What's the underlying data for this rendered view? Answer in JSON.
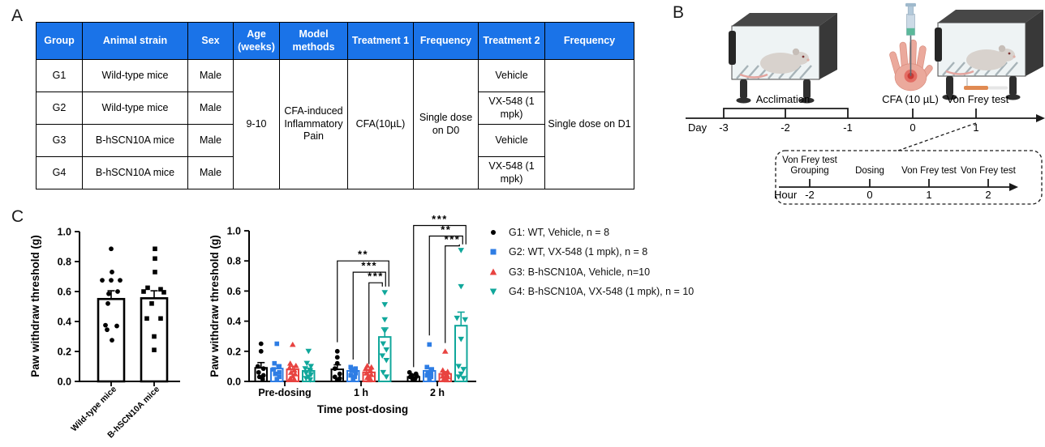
{
  "panel_a": {
    "label": "A",
    "table": {
      "header_bg": "#1a73e8",
      "headers": [
        "Group",
        "Animal strain",
        "Sex",
        "Age (weeks)",
        "Model methods",
        "Treatment 1",
        "Frequency",
        "Treatment 2",
        "Frequency"
      ],
      "rows": [
        {
          "group": "G1",
          "strain": "Wild-type mice",
          "sex": "Male",
          "treatment2": "Vehicle"
        },
        {
          "group": "G2",
          "strain": "Wild-type mice",
          "sex": "Male",
          "treatment2": "VX-548 (1 mpk)"
        },
        {
          "group": "G3",
          "strain": "B-hSCN10A mice",
          "sex": "Male",
          "treatment2": "Vehicle"
        },
        {
          "group": "G4",
          "strain": "B-hSCN10A mice",
          "sex": "Male",
          "treatment2": "VX-548 (1 mpk)"
        }
      ],
      "merged": {
        "age": "9-10",
        "model": "CFA-induced Inflammatory Pain",
        "treatment1": "CFA(10µL)",
        "frequency1": "Single dose on D0",
        "frequency2": "Single dose on D1"
      }
    }
  },
  "panel_b": {
    "label": "B",
    "illustration_labels": {
      "acclimation": "Acclimation",
      "cfa": "CFA (10 µL)",
      "von_frey": "Von Frey test"
    },
    "day_timeline": {
      "axis_label": "Day",
      "ticks": [
        "-3",
        "-2",
        "-1",
        "0",
        "1"
      ]
    },
    "hour_timeline": {
      "axis_label": "Hour",
      "ticks": [
        "-2",
        "0",
        "1",
        "2"
      ],
      "event_line1": "Von Frey test",
      "event_grouping": "Grouping",
      "event_dosing": "Dosing",
      "event_vf1": "Von Frey test",
      "event_vf2": "Von Frey test"
    }
  },
  "panel_c": {
    "label": "C",
    "legend": {
      "items": [
        {
          "label": "G1: WT, Vehicle, n = 8",
          "color": "#000000",
          "marker": "circle"
        },
        {
          "label": "G2: WT, VX-548 (1 mpk), n = 8",
          "color": "#2e7de4",
          "marker": "square"
        },
        {
          "label": "G3: B-hSCN10A, Vehicle, n=10",
          "color": "#e84340",
          "marker": "triangle-up"
        },
        {
          "label": "G4: B-hSCN10A, VX-548 (1 mpk), n = 10",
          "color": "#10a79b",
          "marker": "triangle-down"
        }
      ]
    }
  },
  "chart_data": [
    {
      "type": "bar",
      "title": "",
      "ylabel": "Paw withdraw threshold (g)",
      "xlabel": "",
      "ylim": [
        0,
        1
      ],
      "ytick_labels": [
        "0.0",
        "0.2",
        "0.4",
        "0.6",
        "0.8",
        "1.0"
      ],
      "grid": false,
      "categories": [
        "Wild-type mice",
        "B-hSCN10A mice"
      ],
      "values": [
        0.55,
        0.555
      ],
      "errors": [
        0.055,
        0.05
      ],
      "colors": [
        "#000000",
        "#000000"
      ],
      "markers": [
        "circle",
        "square"
      ],
      "points": [
        [
          [
            0.885,
            0
          ],
          [
            0.73,
            1
          ],
          [
            0.675,
            -11
          ],
          [
            0.675,
            0
          ],
          [
            0.675,
            11
          ],
          [
            0.6,
            8
          ],
          [
            0.585,
            -3
          ],
          [
            0.52,
            -4
          ],
          [
            0.375,
            -7
          ],
          [
            0.37,
            7
          ],
          [
            0.345,
            -5
          ],
          [
            0.275,
            1
          ]
        ],
        [
          [
            0.885,
            1
          ],
          [
            0.82,
            1
          ],
          [
            0.73,
            1
          ],
          [
            0.625,
            -8
          ],
          [
            0.615,
            8
          ],
          [
            0.6,
            -13
          ],
          [
            0.595,
            12
          ],
          [
            0.52,
            -3
          ],
          [
            0.42,
            -9
          ],
          [
            0.42,
            8
          ],
          [
            0.3,
            0
          ],
          [
            0.21,
            0
          ]
        ]
      ]
    },
    {
      "type": "grouped_bar",
      "title": "",
      "ylabel": "Paw withdraw threshold (g)",
      "xlabel": "Time post-dosing",
      "ylim": [
        0,
        1
      ],
      "ytick_labels": [
        "0.0",
        "0.2",
        "0.4",
        "0.6",
        "0.8",
        "1.0"
      ],
      "grid": false,
      "legend_position": "right",
      "categories": [
        "Pre-dosing",
        "1 h",
        "2 h"
      ],
      "series": [
        {
          "name": "G1: WT, Vehicle, n = 8",
          "color": "#000000",
          "marker": "circle",
          "values": [
            0.09,
            0.08,
            0.03
          ],
          "errors": [
            0.035,
            0.03,
            0.012
          ],
          "points": [
            [
              [
                0.25,
                0
              ],
              [
                0.2,
                0
              ],
              [
                0.1,
                -4
              ],
              [
                0.085,
                3
              ],
              [
                0.06,
                -3
              ],
              [
                0.04,
                3
              ],
              [
                0.03,
                -2
              ],
              [
                0.015,
                2
              ]
            ],
            [
              [
                0.2,
                0
              ],
              [
                0.16,
                0
              ],
              [
                0.12,
                0
              ],
              [
                0.085,
                -3
              ],
              [
                0.05,
                3
              ],
              [
                0.03,
                -3
              ],
              [
                0.02,
                3
              ],
              [
                0.01,
                0
              ]
            ],
            [
              [
                0.06,
                -5
              ],
              [
                0.05,
                3
              ],
              [
                0.04,
                -2
              ],
              [
                0.035,
                4
              ],
              [
                0.03,
                -4
              ],
              [
                0.02,
                2
              ],
              [
                0.015,
                -1
              ],
              [
                0.01,
                1
              ]
            ]
          ]
        },
        {
          "name": "G2: WT, VX-548 (1 mpk), n = 8",
          "color": "#2e7de4",
          "marker": "square",
          "values": [
            0.085,
            0.07,
            0.07
          ],
          "errors": [
            0.025,
            0.02,
            0.02
          ],
          "points": [
            [
              [
                0.25,
                0
              ],
              [
                0.12,
                -3
              ],
              [
                0.1,
                3
              ],
              [
                0.08,
                -4
              ],
              [
                0.06,
                3
              ],
              [
                0.05,
                -2
              ],
              [
                0.03,
                3
              ],
              [
                0.015,
                0
              ]
            ],
            [
              [
                0.095,
                -3
              ],
              [
                0.085,
                3
              ],
              [
                0.07,
                -2
              ],
              [
                0.055,
                3
              ],
              [
                0.04,
                -3
              ],
              [
                0.03,
                2
              ],
              [
                0.02,
                0
              ],
              [
                0.01,
                0
              ]
            ],
            [
              [
                0.245,
                0
              ],
              [
                0.095,
                -3
              ],
              [
                0.08,
                3
              ],
              [
                0.06,
                -2
              ],
              [
                0.05,
                2
              ],
              [
                0.04,
                -3
              ],
              [
                0.03,
                2
              ],
              [
                0.015,
                0
              ]
            ]
          ]
        },
        {
          "name": "G3: B-hSCN10A, Vehicle, n=10",
          "color": "#e84340",
          "marker": "triangle-up",
          "values": [
            0.08,
            0.06,
            0.05
          ],
          "errors": [
            0.02,
            0.018,
            0.015
          ],
          "points": [
            [
              [
                0.245,
                0
              ],
              [
                0.12,
                -3
              ],
              [
                0.105,
                4
              ],
              [
                0.09,
                -4
              ],
              [
                0.075,
                2
              ],
              [
                0.06,
                -2
              ],
              [
                0.05,
                3
              ],
              [
                0.035,
                0
              ],
              [
                0.02,
                -3
              ],
              [
                0.015,
                2
              ]
            ],
            [
              [
                0.105,
                -2
              ],
              [
                0.095,
                3
              ],
              [
                0.085,
                -4
              ],
              [
                0.07,
                2
              ],
              [
                0.055,
                -3
              ],
              [
                0.045,
                3
              ],
              [
                0.035,
                0
              ],
              [
                0.025,
                -2
              ],
              [
                0.015,
                2
              ],
              [
                0.01,
                0
              ]
            ],
            [
              [
                0.2,
                0
              ],
              [
                0.075,
                -3
              ],
              [
                0.065,
                3
              ],
              [
                0.055,
                -2
              ],
              [
                0.045,
                2
              ],
              [
                0.035,
                -3
              ],
              [
                0.03,
                3
              ],
              [
                0.02,
                0
              ],
              [
                0.015,
                -2
              ],
              [
                0.01,
                2
              ]
            ]
          ]
        },
        {
          "name": "G4: B-hSCN10A, VX-548 (1 mpk), n = 10",
          "color": "#10a79b",
          "marker": "triangle-down",
          "values": [
            0.07,
            0.295,
            0.37
          ],
          "errors": [
            0.018,
            0.06,
            0.09
          ],
          "points": [
            [
              [
                0.2,
                0
              ],
              [
                0.12,
                -2
              ],
              [
                0.1,
                3
              ],
              [
                0.085,
                -4
              ],
              [
                0.07,
                2
              ],
              [
                0.055,
                -3
              ],
              [
                0.045,
                3
              ],
              [
                0.03,
                0
              ],
              [
                0.02,
                -3
              ],
              [
                0.01,
                2
              ]
            ],
            [
              [
                0.59,
                0
              ],
              [
                0.51,
                0
              ],
              [
                0.41,
                0
              ],
              [
                0.335,
                0
              ],
              [
                0.25,
                -2
              ],
              [
                0.21,
                2
              ],
              [
                0.17,
                -3
              ],
              [
                0.14,
                2
              ],
              [
                0.06,
                -2
              ],
              [
                0.03,
                2
              ]
            ],
            [
              [
                0.87,
                0
              ],
              [
                0.63,
                0
              ],
              [
                0.42,
                -5
              ],
              [
                0.41,
                5
              ],
              [
                0.28,
                0
              ],
              [
                0.1,
                -3
              ],
              [
                0.08,
                3
              ],
              [
                0.05,
                0
              ],
              [
                0.03,
                -3
              ],
              [
                0.02,
                3
              ]
            ]
          ]
        }
      ],
      "brackets": [
        {
          "cat": 1,
          "from": 0,
          "to": 3,
          "y": 0.8,
          "stars": "**",
          "left_end": 0.26,
          "right_end": 0.63,
          "right_dx": 5
        },
        {
          "cat": 1,
          "from": 1,
          "to": 3,
          "y": 0.725,
          "stars": "***",
          "left_end": 0.145,
          "right_end": 0.63,
          "right_dx": 1
        },
        {
          "cat": 1,
          "from": 2,
          "to": 3,
          "y": 0.655,
          "stars": "***",
          "left_end": 0.115,
          "right_end": 0.63,
          "right_dx": -3
        },
        {
          "cat": 2,
          "from": 0,
          "to": 3,
          "y": 1.035,
          "stars": "***",
          "left_end": 0.095,
          "right_end": 0.91,
          "right_dx": 6
        },
        {
          "cat": 2,
          "from": 1,
          "to": 3,
          "y": 0.965,
          "stars": "**",
          "left_end": 0.305,
          "right_end": 0.91,
          "right_dx": 2
        },
        {
          "cat": 2,
          "from": 2,
          "to": 3,
          "y": 0.9,
          "stars": "***",
          "left_end": 0.255,
          "right_end": 0.91,
          "right_dx": -2
        }
      ]
    }
  ]
}
